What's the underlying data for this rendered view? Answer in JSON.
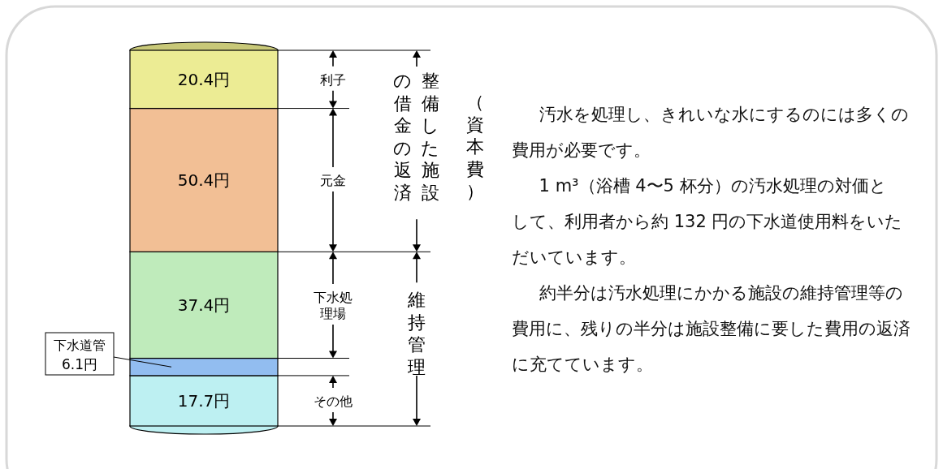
{
  "chart_data": {
    "type": "bar",
    "stacked": true,
    "legend": false,
    "categories": [
      null
    ],
    "series": [
      {
        "color": "#bdf0f2",
        "values": [
          17.7
        ],
        "value_labels": [
          "17.7円"
        ]
      },
      {
        "color": "#92bdf0",
        "values": [
          6.1
        ],
        "value_labels": [
          "6.1円"
        ]
      },
      {
        "color": "#bfebbb",
        "values": [
          37.4
        ],
        "value_labels": [
          "37.4円"
        ]
      },
      {
        "color": "#f2bf95",
        "values": [
          50.4
        ],
        "value_labels": [
          "50.4円"
        ]
      },
      {
        "color": "#ecec94",
        "values": [
          20.4
        ],
        "value_labels": [
          "20.4円"
        ]
      }
    ],
    "annotations": [
      "整備した施設の借金の返済",
      "（資本費）",
      "維持管理",
      "その他",
      "下水道管",
      "下水処理場",
      "元金",
      "利子",
      "汚水を処理し、きれいな水にするのには多くの費用が必要です。",
      "1 m³（浴槽 4〜5 杯分）の汚水処理の対価として、利用者から約 132 円の下水道使用料をいただいています。",
      "約半分は汚水処理にかかる施設の維持管理等の費用に、残りの半分は施設整備に要した費用の返済に充てています。"
    ]
  }
}
